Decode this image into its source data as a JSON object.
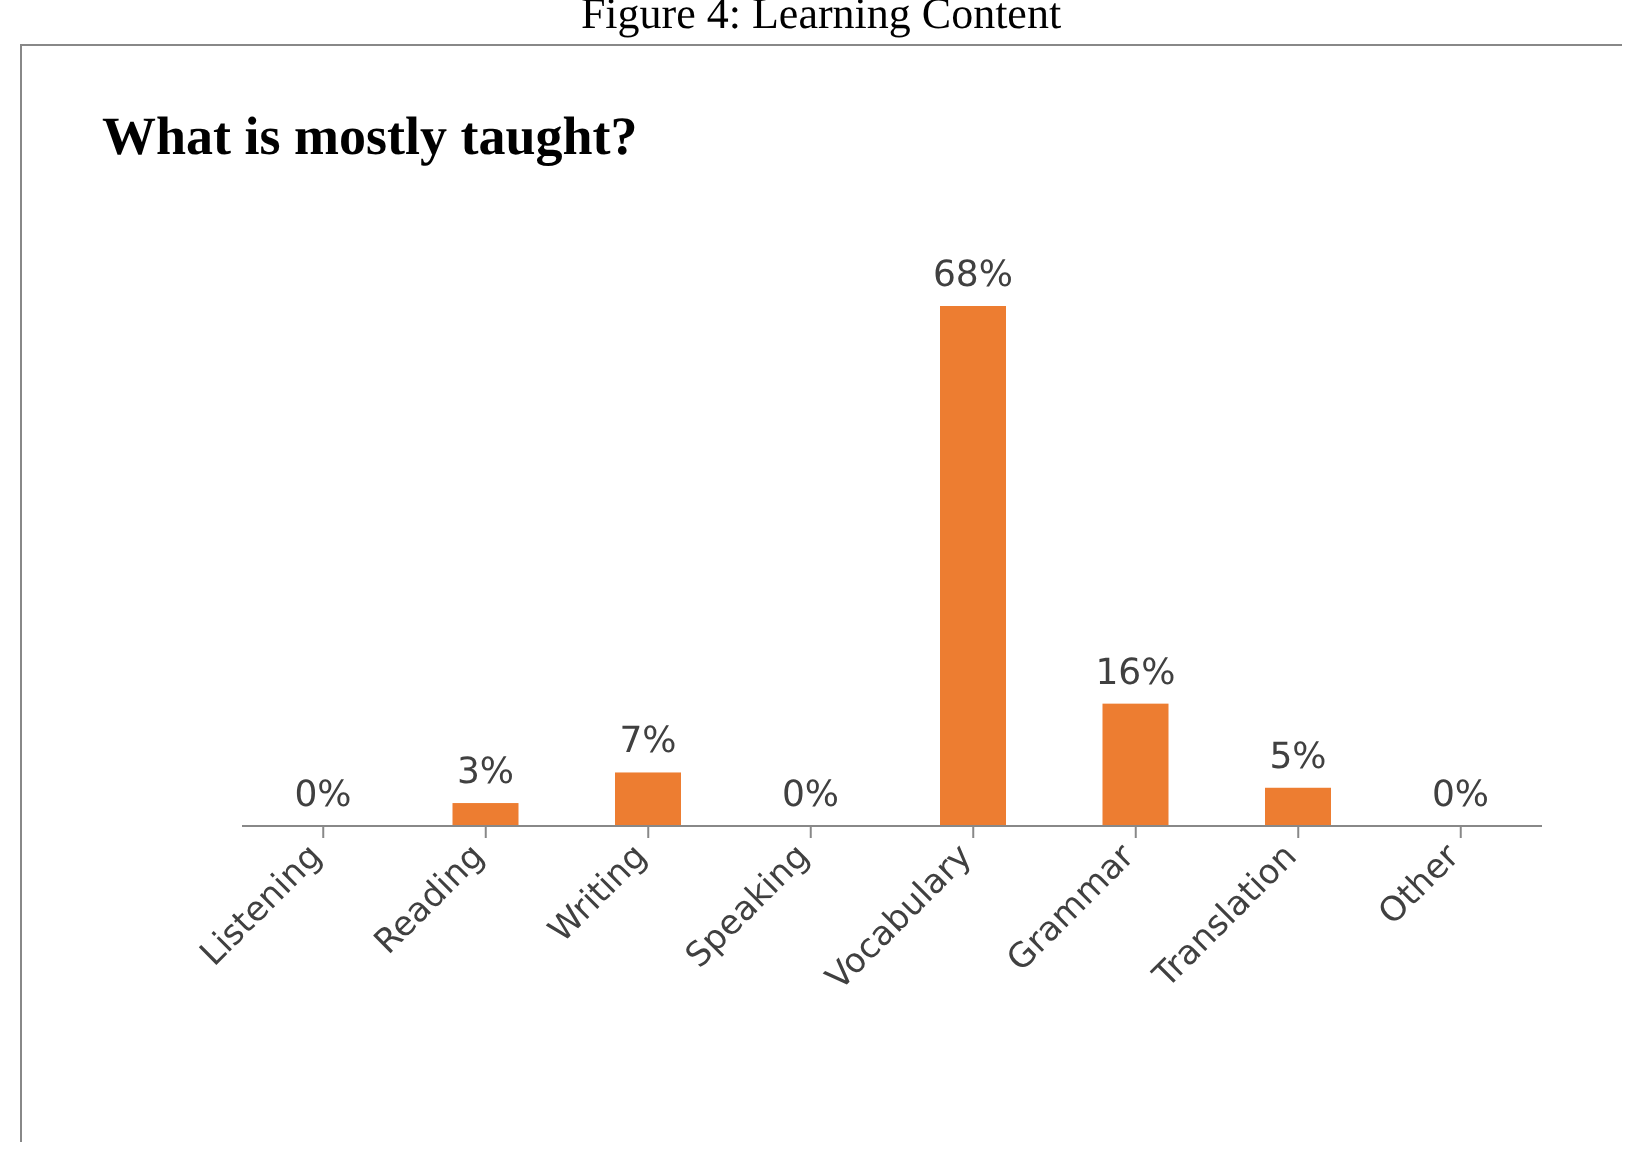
{
  "chart_data": {
    "type": "bar",
    "title": "What is mostly taught?",
    "annotations": [
      "Figure 4: Learning Content"
    ],
    "categories": [
      "Listening",
      "Reading",
      "Writing",
      "Speaking",
      "Vocabulary",
      "Grammar",
      "Translation",
      "Other"
    ],
    "values": [
      0,
      3,
      7,
      0,
      68,
      16,
      5,
      0
    ],
    "value_labels": [
      "0%",
      "3%",
      "7%",
      "0%",
      "68%",
      "16%",
      "5%",
      "0%"
    ],
    "color": "#ed7d31",
    "grid": false
  }
}
